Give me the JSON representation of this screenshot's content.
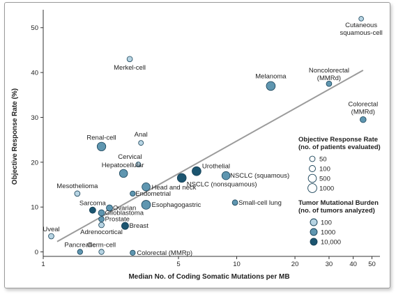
{
  "chart_data": {
    "type": "scatter",
    "xlabel": "Median No. of Coding Somatic Mutations per MB",
    "ylabel": "Objective Response Rate (%)",
    "x_scale": "log",
    "xlim": [
      1,
      55
    ],
    "ylim": [
      -1,
      54
    ],
    "x_ticks": [
      1,
      5,
      10,
      20,
      30,
      40,
      50
    ],
    "y_ticks": [
      0,
      10,
      20,
      30,
      40,
      50
    ],
    "trend_line": {
      "x": [
        1.18,
        45
      ],
      "y": [
        2.3,
        40.5
      ]
    },
    "colors": {
      "tmb_100": "#b7d4e3",
      "tmb_1000": "#5f96b0",
      "tmb_10000": "#1c5570",
      "trend": "#9b9b9b"
    },
    "points": [
      {
        "name": "Cutaneous squamous-cell",
        "x": 44,
        "y": 52,
        "n": 25,
        "tmb": 100
      },
      {
        "name": "Merkel-cell",
        "x": 2.8,
        "y": 43,
        "n": 50,
        "tmb": 100
      },
      {
        "name": "Melanoma",
        "x": 15,
        "y": 37,
        "n": 1000,
        "tmb": 1000
      },
      {
        "name": "Noncolorectal (MMRd)",
        "x": 30,
        "y": 37.5,
        "n": 50,
        "tmb": 1000
      },
      {
        "name": "Colorectal (MMRd)",
        "x": 45,
        "y": 29.5,
        "n": 80,
        "tmb": 1000
      },
      {
        "name": "Renal-cell",
        "x": 2.0,
        "y": 23.5,
        "n": 800,
        "tmb": 1000
      },
      {
        "name": "Anal",
        "x": 3.2,
        "y": 24.3,
        "n": 30,
        "tmb": 100
      },
      {
        "name": "Cervical",
        "x": 3.1,
        "y": 19.5,
        "n": 30,
        "tmb": 100
      },
      {
        "name": "Hepatocellular",
        "x": 2.6,
        "y": 17.5,
        "n": 500,
        "tmb": 1000
      },
      {
        "name": "Urothelial",
        "x": 6.2,
        "y": 18,
        "n": 1000,
        "tmb": 10000
      },
      {
        "name": "NSCLC (squamous)",
        "x": 8.8,
        "y": 17,
        "n": 500,
        "tmb": 1000
      },
      {
        "name": "NSCLC (nonsquamous)",
        "x": 5.2,
        "y": 16.5,
        "n": 1000,
        "tmb": 10000
      },
      {
        "name": "Head and neck",
        "x": 3.4,
        "y": 14.5,
        "n": 500,
        "tmb": 1000
      },
      {
        "name": "Endometrial",
        "x": 2.9,
        "y": 13,
        "n": 40,
        "tmb": 1000
      },
      {
        "name": "Mesothelioma",
        "x": 1.5,
        "y": 13,
        "n": 50,
        "tmb": 100
      },
      {
        "name": "Esophagogastric",
        "x": 3.4,
        "y": 10.5,
        "n": 1000,
        "tmb": 1000
      },
      {
        "name": "Small-cell lung",
        "x": 9.8,
        "y": 11,
        "n": 50,
        "tmb": 1000
      },
      {
        "name": "Sarcoma",
        "x": 1.8,
        "y": 9.3,
        "n": 100,
        "tmb": 10000
      },
      {
        "name": "Ovarian",
        "x": 2.2,
        "y": 9.8,
        "n": 100,
        "tmb": 1000
      },
      {
        "name": "Glioblastoma",
        "x": 2.0,
        "y": 8.7,
        "n": 100,
        "tmb": 1000
      },
      {
        "name": "Prostate",
        "x": 2.0,
        "y": 7.3,
        "n": 50,
        "tmb": 1000
      },
      {
        "name": "Adrenocortical",
        "x": 2.0,
        "y": 6.0,
        "n": 50,
        "tmb": 100
      },
      {
        "name": "Breast",
        "x": 2.65,
        "y": 5.8,
        "n": 200,
        "tmb": 10000
      },
      {
        "name": "Uveal",
        "x": 1.1,
        "y": 3.5,
        "n": 50,
        "tmb": 100
      },
      {
        "name": "Pancreatic",
        "x": 1.55,
        "y": 0,
        "n": 40,
        "tmb": 1000
      },
      {
        "name": "Germ-cell",
        "x": 2.0,
        "y": 0,
        "n": 40,
        "tmb": 100
      },
      {
        "name": "Colorectal (MMRp)",
        "x": 2.9,
        "y": -0.2,
        "n": 40,
        "tmb": 1000
      }
    ],
    "legend_response": {
      "title_line1": "Objective Response Rate",
      "title_line2": "(no. of patients evaluated)",
      "items": [
        {
          "label": "50",
          "n": 50
        },
        {
          "label": "100",
          "n": 100
        },
        {
          "label": "500",
          "n": 500
        },
        {
          "label": "1000",
          "n": 1000
        }
      ]
    },
    "legend_tmb": {
      "title_line1": "Tumor Mutational Burden",
      "title_line2": "(no. of tumors analyzed)",
      "items": [
        {
          "label": "100",
          "tmb": 100
        },
        {
          "label": "1000",
          "tmb": 1000
        },
        {
          "label": "10,000",
          "tmb": 10000
        }
      ]
    }
  }
}
